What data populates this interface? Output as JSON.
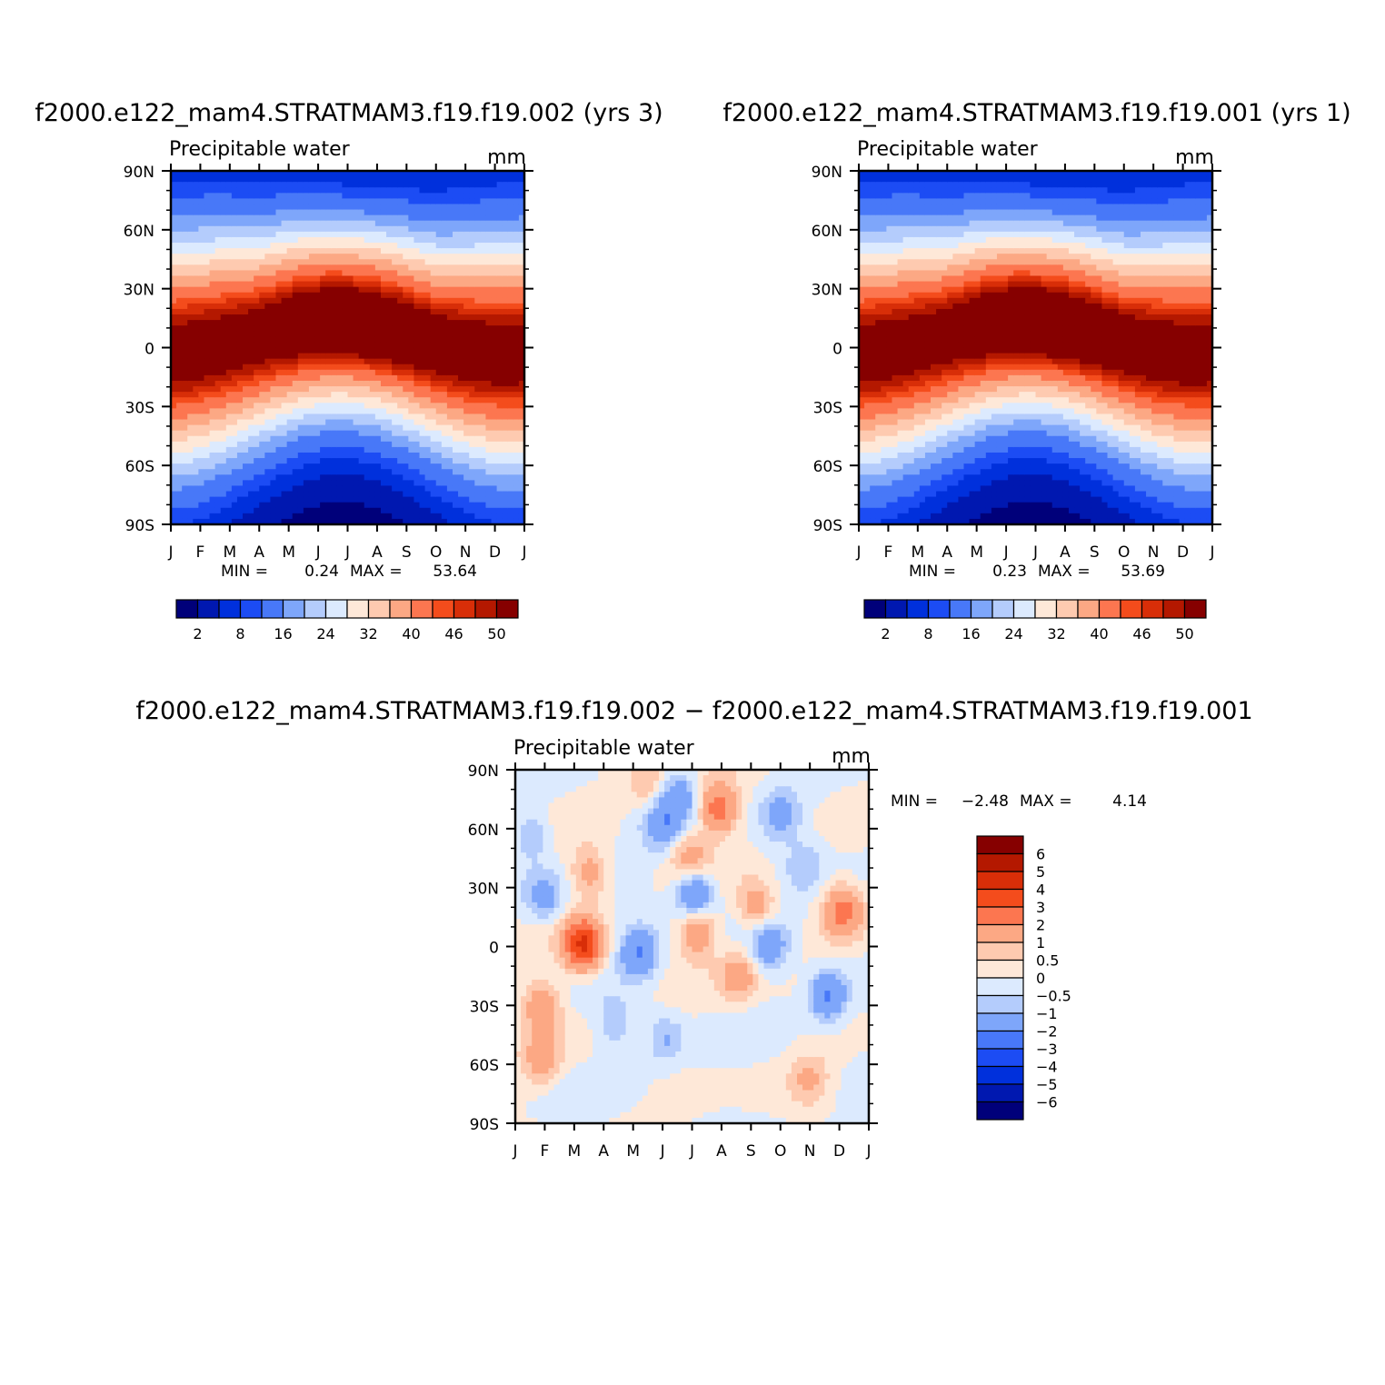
{
  "chart_data": [
    {
      "type": "heatmap",
      "title": "f2000.e122_mam4.STRATMAM3.f19.f19.002 (yrs 3)",
      "subtitle": "Precipitable water",
      "units": "mm",
      "x_ticks": [
        "J",
        "F",
        "M",
        "A",
        "M",
        "J",
        "J",
        "A",
        "S",
        "O",
        "N",
        "D",
        "J"
      ],
      "y_ticks": [
        "90N",
        "60N",
        "30N",
        "0",
        "30S",
        "60S",
        "90S"
      ],
      "ylim": [
        -90,
        90
      ],
      "stats": {
        "min_label": "MIN =",
        "min": "0.24",
        "max_label": "MAX =",
        "max": "53.64"
      },
      "colorbar": {
        "orientation": "horizontal",
        "levels": [
          2,
          5,
          8,
          11,
          16,
          20,
          24,
          28,
          32,
          36,
          40,
          44,
          46,
          48,
          50
        ],
        "labels": [
          "2",
          "8",
          "16",
          "24",
          "32",
          "40",
          "46",
          "50"
        ],
        "colors": [
          "#00007a",
          "#0018b0",
          "#0030dc",
          "#1c4cf4",
          "#4878f8",
          "#7ea6fa",
          "#b4ccfc",
          "#dceafe",
          "#fee8d8",
          "#fecab0",
          "#fca884",
          "#fc7650",
          "#f44c1c",
          "#d82e08",
          "#b41800",
          "#860000"
        ]
      },
      "peak": {
        "month": 7.5,
        "lat": 8
      }
    },
    {
      "type": "heatmap",
      "title": "f2000.e122_mam4.STRATMAM3.f19.f19.001 (yrs 1)",
      "subtitle": "Precipitable water",
      "units": "mm",
      "x_ticks": [
        "J",
        "F",
        "M",
        "A",
        "M",
        "J",
        "J",
        "A",
        "S",
        "O",
        "N",
        "D",
        "J"
      ],
      "y_ticks": [
        "90N",
        "60N",
        "30N",
        "0",
        "30S",
        "60S",
        "90S"
      ],
      "ylim": [
        -90,
        90
      ],
      "stats": {
        "min_label": "MIN =",
        "min": "0.23",
        "max_label": "MAX =",
        "max": "53.69"
      },
      "colorbar": {
        "orientation": "horizontal",
        "levels": [
          2,
          5,
          8,
          11,
          16,
          20,
          24,
          28,
          32,
          36,
          40,
          44,
          46,
          48,
          50
        ],
        "labels": [
          "2",
          "8",
          "16",
          "24",
          "32",
          "40",
          "46",
          "50"
        ],
        "colors": [
          "#00007a",
          "#0018b0",
          "#0030dc",
          "#1c4cf4",
          "#4878f8",
          "#7ea6fa",
          "#b4ccfc",
          "#dceafe",
          "#fee8d8",
          "#fecab0",
          "#fca884",
          "#fc7650",
          "#f44c1c",
          "#d82e08",
          "#b41800",
          "#860000"
        ]
      },
      "peak": {
        "month": 7.5,
        "lat": 8
      }
    },
    {
      "type": "heatmap",
      "title": "f2000.e122_mam4.STRATMAM3.f19.f19.002 − f2000.e122_mam4.STRATMAM3.f19.f19.001",
      "subtitle": "Precipitable water",
      "units": "mm",
      "x_ticks": [
        "J",
        "F",
        "M",
        "A",
        "M",
        "J",
        "J",
        "A",
        "S",
        "O",
        "N",
        "D",
        "J"
      ],
      "y_ticks": [
        "90N",
        "60N",
        "30N",
        "0",
        "30S",
        "60S",
        "90S"
      ],
      "ylim": [
        -90,
        90
      ],
      "stats": {
        "min_label": "MIN =",
        "min": "−2.48",
        "max_label": "MAX =",
        "max": "4.14"
      },
      "colorbar": {
        "orientation": "vertical",
        "levels": [
          6,
          5,
          4,
          3,
          2,
          1,
          0.5,
          0,
          -0.5,
          -1,
          -2,
          -3,
          -4,
          -5,
          -6
        ],
        "labels": [
          "6",
          "5",
          "4",
          "3",
          "2",
          "1",
          "0.5",
          "0",
          "−0.5",
          "−1",
          "−2",
          "−3",
          "−4",
          "−5",
          "−6"
        ],
        "colors": [
          "#860000",
          "#b41800",
          "#d82e08",
          "#f44c1c",
          "#fc7650",
          "#fca884",
          "#fecab0",
          "#fee8d8",
          "#dceafe",
          "#b4ccfc",
          "#7ea6fa",
          "#4878f8",
          "#1c4cf4",
          "#0030dc",
          "#0018b0",
          "#00007a"
        ]
      },
      "features": [
        {
          "month": 2.3,
          "lat": 1,
          "value": 4.1
        },
        {
          "month": 6.9,
          "lat": 70,
          "value": 2.6
        },
        {
          "month": 5.9,
          "lat": 45,
          "value": 1.5
        },
        {
          "month": 6.2,
          "lat": 8,
          "value": 2.0
        },
        {
          "month": 8.2,
          "lat": 20,
          "value": 1.6
        },
        {
          "month": 11.1,
          "lat": 18,
          "value": 2.2
        },
        {
          "month": 0.9,
          "lat": -30,
          "value": 1.8
        },
        {
          "month": 7.6,
          "lat": -15,
          "value": 1.4
        },
        {
          "month": 0.9,
          "lat": -58,
          "value": 1.3
        },
        {
          "month": 2.5,
          "lat": 37,
          "value": 1.4
        },
        {
          "month": 5.6,
          "lat": 77,
          "value": -1.5
        },
        {
          "month": 6.1,
          "lat": 27,
          "value": -2.5
        },
        {
          "month": 5.0,
          "lat": 62,
          "value": -1.6
        },
        {
          "month": 4.2,
          "lat": -3,
          "value": -2.0
        },
        {
          "month": 8.6,
          "lat": 0,
          "value": -1.7
        },
        {
          "month": 10.6,
          "lat": -25,
          "value": -2.2
        },
        {
          "month": 1.0,
          "lat": 24,
          "value": -1.3
        },
        {
          "month": 9.0,
          "lat": 67,
          "value": -1.3
        },
        {
          "month": 0.6,
          "lat": 57,
          "value": -1.0
        },
        {
          "month": 5.1,
          "lat": -47,
          "value": -1.1
        },
        {
          "month": 4.4,
          "lat": 84,
          "value": 1.0
        },
        {
          "month": 10.0,
          "lat": -68,
          "value": 1.0
        },
        {
          "month": 3.4,
          "lat": -40,
          "value": -0.9
        },
        {
          "month": 9.8,
          "lat": 40,
          "value": -0.9
        }
      ]
    }
  ]
}
